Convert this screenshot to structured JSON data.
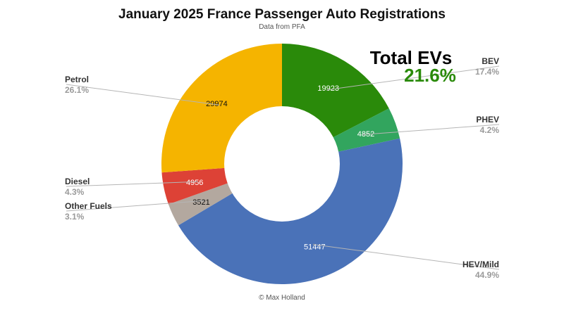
{
  "chart_data": {
    "type": "pie",
    "title": "January 2025 France Passenger Auto Registrations",
    "subtitle": "Data from PFA",
    "credit": "© Max Holland",
    "callout": {
      "label": "Total EVs",
      "value": "21.6%",
      "color": "#2a8a0a"
    },
    "slices": [
      {
        "name": "BEV",
        "value": 19923,
        "pct": "17.4%",
        "color": "#2a8a0a"
      },
      {
        "name": "PHEV",
        "value": 4852,
        "pct": "4.2%",
        "color": "#32a55e"
      },
      {
        "name": "HEV/Mild",
        "value": 51447,
        "pct": "44.9%",
        "color": "#4a72b8"
      },
      {
        "name": "Other Fuels",
        "value": 3521,
        "pct": "3.1%",
        "color": "#b3a89f"
      },
      {
        "name": "Diesel",
        "value": 4956,
        "pct": "4.3%",
        "color": "#dd4236"
      },
      {
        "name": "Petrol",
        "value": 29974,
        "pct": "26.1%",
        "color": "#f5b400"
      }
    ]
  }
}
